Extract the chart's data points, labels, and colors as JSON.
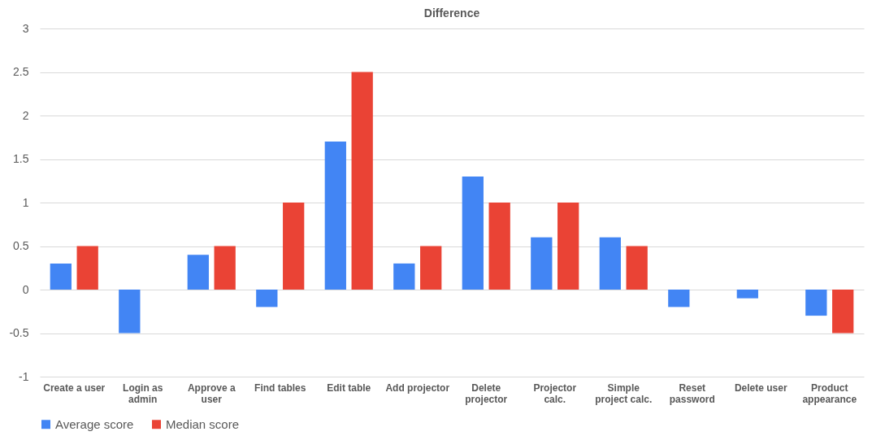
{
  "chart_data": {
    "type": "bar",
    "title": "Difference",
    "categories": [
      "Create a user",
      "Login as admin",
      "Approve a user",
      "Find tables",
      "Edit table",
      "Add projector",
      "Delete projector",
      "Projector calc.",
      "Simple project calc.",
      "Reset password",
      "Delete user",
      "Product appearance"
    ],
    "series": [
      {
        "name": "Average score",
        "color": "#4285f4",
        "values": [
          0.3,
          -0.5,
          0.4,
          -0.2,
          1.7,
          0.3,
          1.3,
          0.6,
          0.6,
          -0.2,
          -0.1,
          -0.3
        ]
      },
      {
        "name": "Median score",
        "color": "#ea4335",
        "values": [
          0.5,
          0,
          0.5,
          1,
          2.5,
          0.5,
          1,
          1,
          0.5,
          0,
          0,
          -0.5
        ]
      }
    ],
    "ylim": [
      -1,
      3
    ],
    "yticks": [
      -1,
      -0.5,
      0,
      0.5,
      1,
      1.5,
      2,
      2.5,
      3
    ],
    "grid": "y",
    "legend": "bottom"
  }
}
